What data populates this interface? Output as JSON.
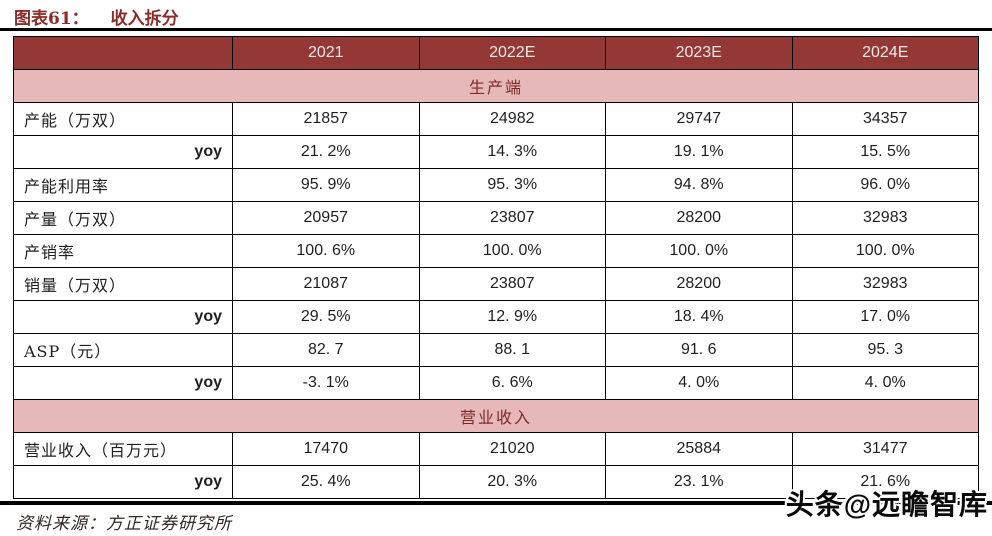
{
  "page": {
    "title_prefix": "图表61：",
    "title_text": "收入拆分",
    "source_label": "资料来源：",
    "source_name": "方正证券研究所",
    "watermark": "头条@远瞻智库"
  },
  "colors": {
    "header_bg": "#943836",
    "header_text": "#f2eaea",
    "section_bg": "#e6b9b8",
    "section_text": "#7d2b28",
    "title_text": "#8b2c28",
    "body_text": "#1f1f1f",
    "rule": "#000000"
  },
  "table": {
    "columns": [
      "",
      "2021",
      "2022E",
      "2023E",
      "2024E"
    ],
    "rows": [
      {
        "type": "section",
        "label": "生产端"
      },
      {
        "type": "data",
        "label": "产能（万双）",
        "align": "left",
        "values": [
          "21857",
          "24982",
          "29747",
          "34357"
        ]
      },
      {
        "type": "data",
        "label": "yoy",
        "align": "right",
        "values": [
          "21. 2%",
          "14. 3%",
          "19. 1%",
          "15. 5%"
        ]
      },
      {
        "type": "data",
        "label": "产能利用率",
        "align": "left",
        "values": [
          "95. 9%",
          "95. 3%",
          "94. 8%",
          "96. 0%"
        ]
      },
      {
        "type": "data",
        "label": "产量（万双）",
        "align": "left",
        "values": [
          "20957",
          "23807",
          "28200",
          "32983"
        ]
      },
      {
        "type": "data",
        "label": "产销率",
        "align": "left",
        "values": [
          "100. 6%",
          "100. 0%",
          "100. 0%",
          "100. 0%"
        ]
      },
      {
        "type": "data",
        "label": "销量（万双）",
        "align": "left",
        "values": [
          "21087",
          "23807",
          "28200",
          "32983"
        ]
      },
      {
        "type": "data",
        "label": "yoy",
        "align": "right",
        "values": [
          "29. 5%",
          "12. 9%",
          "18. 4%",
          "17. 0%"
        ]
      },
      {
        "type": "data",
        "label": "ASP（元）",
        "align": "left",
        "values": [
          "82. 7",
          "88. 1",
          "91. 6",
          "95. 3"
        ]
      },
      {
        "type": "data",
        "label": "yoy",
        "align": "right",
        "values": [
          "-3. 1%",
          "6. 6%",
          "4. 0%",
          "4. 0%"
        ]
      },
      {
        "type": "section",
        "label": "营业收入"
      },
      {
        "type": "data",
        "label": "营业收入（百万元）",
        "align": "left",
        "values": [
          "17470",
          "21020",
          "25884",
          "31477"
        ]
      },
      {
        "type": "data",
        "label": "yoy",
        "align": "right",
        "values": [
          "25. 4%",
          "20. 3%",
          "23. 1%",
          "21. 6%"
        ]
      }
    ]
  }
}
